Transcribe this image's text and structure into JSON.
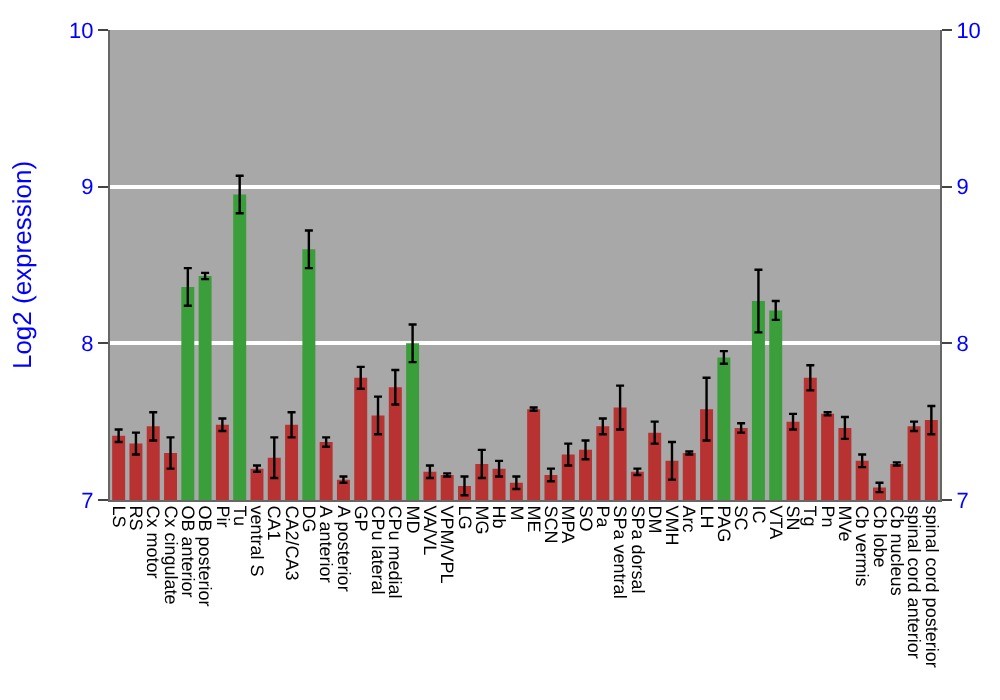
{
  "chart_data": {
    "type": "bar",
    "ylabel": "Log2 (expression)",
    "categories": [
      "LS",
      "RS",
      "Cx motor",
      "Cx cingulate",
      "OB anterior",
      "OB posterior",
      "Pir",
      "Tu",
      "ventral S",
      "CA1",
      "CA2/CA3",
      "DG",
      "A anterior",
      "A posterior",
      "GP",
      "CPu lateral",
      "CPu medial",
      "MD",
      "VA/VL",
      "VPM/VPL",
      "LG",
      "MG",
      "Hb",
      "M",
      "ME",
      "SCN",
      "MPA",
      "SO",
      "Pa",
      "SPa ventral",
      "SPa dorsal",
      "DM",
      "VMH",
      "Arc",
      "LH",
      "PAG",
      "SC",
      "IC",
      "VTA",
      "SN",
      "Tg",
      "Pn",
      "MVe",
      "Cb vermis",
      "Cb lobe",
      "Cb nucleus",
      "spinal cord anterior",
      "spinal cord posterior"
    ],
    "values": [
      7.41,
      7.36,
      7.47,
      7.3,
      8.36,
      8.43,
      7.48,
      8.95,
      7.2,
      7.27,
      7.48,
      8.6,
      7.37,
      7.13,
      7.78,
      7.54,
      7.72,
      8.0,
      7.18,
      7.16,
      7.09,
      7.23,
      7.2,
      7.11,
      7.58,
      7.16,
      7.29,
      7.32,
      7.47,
      7.59,
      7.18,
      7.43,
      7.25,
      7.3,
      7.58,
      7.91,
      7.46,
      8.27,
      8.21,
      7.5,
      7.78,
      7.55,
      7.46,
      7.25,
      7.08,
      7.23,
      7.47,
      7.51
    ],
    "errors": [
      0.04,
      0.07,
      0.09,
      0.1,
      0.12,
      0.02,
      0.04,
      0.12,
      0.02,
      0.13,
      0.08,
      0.12,
      0.03,
      0.02,
      0.07,
      0.12,
      0.11,
      0.12,
      0.04,
      0.01,
      0.06,
      0.09,
      0.05,
      0.04,
      0.01,
      0.04,
      0.07,
      0.06,
      0.05,
      0.14,
      0.02,
      0.07,
      0.12,
      0.01,
      0.2,
      0.04,
      0.03,
      0.2,
      0.06,
      0.05,
      0.08,
      0.01,
      0.07,
      0.04,
      0.03,
      0.01,
      0.03,
      0.09
    ],
    "colors": [
      "#b83232",
      "#b83232",
      "#b83232",
      "#b83232",
      "#3a9e3a",
      "#3a9e3a",
      "#b83232",
      "#3a9e3a",
      "#b83232",
      "#b83232",
      "#b83232",
      "#3a9e3a",
      "#b83232",
      "#b83232",
      "#b83232",
      "#b83232",
      "#b83232",
      "#3a9e3a",
      "#b83232",
      "#b83232",
      "#b83232",
      "#b83232",
      "#b83232",
      "#b83232",
      "#b83232",
      "#b83232",
      "#b83232",
      "#b83232",
      "#b83232",
      "#b83232",
      "#b83232",
      "#b83232",
      "#b83232",
      "#b83232",
      "#b83232",
      "#3a9e3a",
      "#b83232",
      "#3a9e3a",
      "#3a9e3a",
      "#b83232",
      "#b83232",
      "#b83232",
      "#b83232",
      "#b83232",
      "#b83232",
      "#b83232",
      "#b83232",
      "#b83232"
    ],
    "ylim": [
      7,
      10
    ],
    "yticks": [
      7,
      8,
      9,
      10
    ],
    "y2lim": [
      7,
      10
    ],
    "y2ticks": [
      7,
      8,
      9,
      10
    ],
    "grid": "y"
  }
}
